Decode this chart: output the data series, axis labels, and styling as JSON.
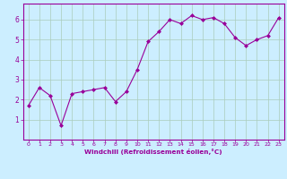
{
  "x": [
    0,
    1,
    2,
    3,
    4,
    5,
    6,
    7,
    8,
    9,
    10,
    11,
    12,
    13,
    14,
    15,
    16,
    17,
    18,
    19,
    20,
    21,
    22,
    23
  ],
  "y": [
    1.7,
    2.6,
    2.2,
    0.7,
    2.3,
    2.4,
    2.5,
    2.6,
    1.9,
    2.4,
    3.5,
    4.9,
    5.4,
    6.0,
    5.8,
    6.2,
    6.0,
    6.1,
    5.8,
    5.1,
    4.7,
    5.0,
    5.2,
    6.1
  ],
  "line_color": "#990099",
  "marker": "D",
  "marker_size": 2,
  "bg_color": "#cceeff",
  "grid_color": "#aaccbb",
  "xlabel": "Windchill (Refroidissement éolien,°C)",
  "xlabel_color": "#990099",
  "tick_color": "#990099",
  "spine_color": "#990099",
  "ylim": [
    0,
    6.8
  ],
  "xlim": [
    -0.5,
    23.5
  ],
  "yticks": [
    1,
    2,
    3,
    4,
    5,
    6
  ],
  "xticks": [
    0,
    1,
    2,
    3,
    4,
    5,
    6,
    7,
    8,
    9,
    10,
    11,
    12,
    13,
    14,
    15,
    16,
    17,
    18,
    19,
    20,
    21,
    22,
    23
  ]
}
